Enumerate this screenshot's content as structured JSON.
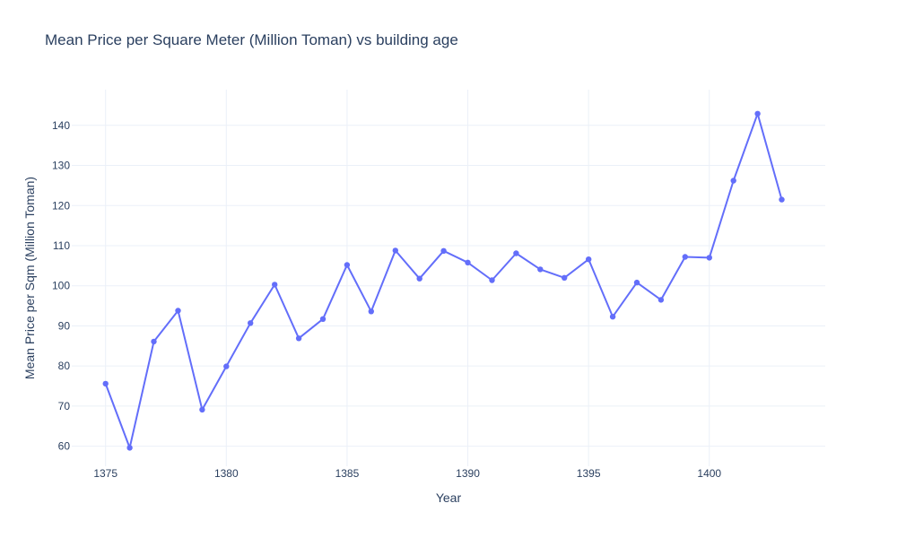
{
  "chart_data": {
    "type": "line",
    "title": "Mean Price per Square Meter (Million Toman) vs building age",
    "xlabel": "Year",
    "ylabel": "Mean Price per Sqm (Million Toman)",
    "x": [
      1375,
      1376,
      1377,
      1378,
      1379,
      1380,
      1381,
      1382,
      1383,
      1384,
      1385,
      1386,
      1387,
      1388,
      1389,
      1390,
      1391,
      1392,
      1393,
      1394,
      1395,
      1396,
      1397,
      1398,
      1399,
      1400,
      1401,
      1402,
      1403
    ],
    "series": [
      {
        "values": [
          75.6,
          59.6,
          86.1,
          93.8,
          69.1,
          79.9,
          90.7,
          100.3,
          86.9,
          91.7,
          105.2,
          93.6,
          108.8,
          101.8,
          108.7,
          105.8,
          101.4,
          108.1,
          104.1,
          102.0,
          106.6,
          92.3,
          100.8,
          96.5,
          107.2,
          107.0,
          126.2,
          142.9,
          121.5
        ],
        "color": "#636efa"
      }
    ],
    "xlim": [
      1373.6,
      1404.8
    ],
    "ylim": [
      55.0,
      148.9
    ],
    "x_ticks": [
      1375,
      1380,
      1385,
      1390,
      1395,
      1400
    ],
    "y_ticks": [
      60,
      70,
      80,
      90,
      100,
      110,
      120,
      130,
      140
    ],
    "grid": true,
    "legend": false
  }
}
